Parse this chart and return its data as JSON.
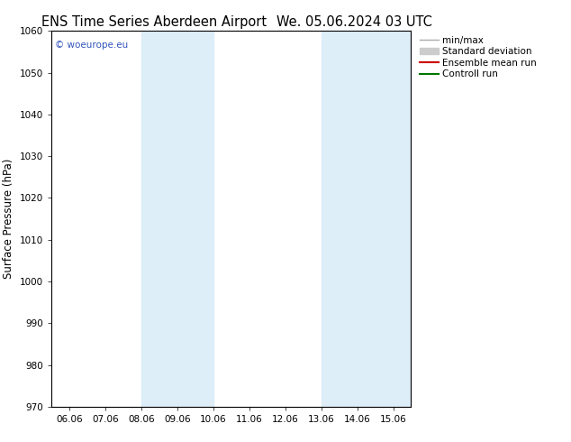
{
  "title_left": "ENS Time Series Aberdeen Airport",
  "title_right": "We. 05.06.2024 03 UTC",
  "ylabel": "Surface Pressure (hPa)",
  "ylim": [
    970,
    1060
  ],
  "yticks": [
    970,
    980,
    990,
    1000,
    1010,
    1020,
    1030,
    1040,
    1050,
    1060
  ],
  "x_labels": [
    "06.06",
    "07.06",
    "08.06",
    "09.06",
    "10.06",
    "11.06",
    "12.06",
    "13.06",
    "14.06",
    "15.06"
  ],
  "x_values": [
    0,
    1,
    2,
    3,
    4,
    5,
    6,
    7,
    8,
    9
  ],
  "xlim": [
    -0.5,
    9.5
  ],
  "shaded_bands": [
    {
      "x_start": 2.0,
      "x_end": 4.0,
      "color": "#ddeef8"
    },
    {
      "x_start": 7.0,
      "x_end": 9.5,
      "color": "#ddeef8"
    }
  ],
  "watermark_text": "© woeurope.eu",
  "watermark_color": "#3355bb",
  "legend_items": [
    {
      "label": "min/max",
      "color": "#aaaaaa",
      "lw": 1.0,
      "style": "line"
    },
    {
      "label": "Standard deviation",
      "color": "#cccccc",
      "lw": 5,
      "style": "bar"
    },
    {
      "label": "Ensemble mean run",
      "color": "#cc0000",
      "lw": 1.5,
      "style": "line"
    },
    {
      "label": "Controll run",
      "color": "#007700",
      "lw": 1.5,
      "style": "line"
    }
  ],
  "background_color": "#ffffff",
  "plot_bg_color": "#ffffff",
  "title_fontsize": 10.5,
  "tick_fontsize": 7.5,
  "ylabel_fontsize": 8.5,
  "legend_fontsize": 7.5
}
